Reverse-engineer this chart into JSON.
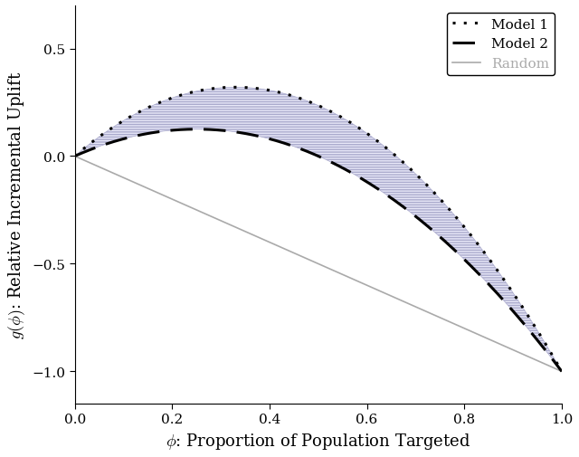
{
  "xlabel": "$\\phi$: Proportion of Population Targeted",
  "ylabel": "$g(\\phi)$: Relative Incremental Uplift",
  "xlim": [
    0,
    1
  ],
  "ylim": [
    -1.15,
    0.7
  ],
  "model1_label": "Model 1",
  "model2_label": "Model 2",
  "random_label": "Random",
  "model1_color": "#000000",
  "model2_color": "#000000",
  "random_color": "#aaaaaa",
  "hatch_linecolor": "#aaaacc",
  "hatch_facecolor": "#e8e8f8",
  "A1": 2.94,
  "A2": 2.0,
  "xticks": [
    0,
    0.2,
    0.4,
    0.6,
    0.8,
    1.0
  ],
  "yticks": [
    -1.0,
    -0.5,
    0.0,
    0.5
  ],
  "legend_loc": "upper right",
  "figsize": [
    6.4,
    5.06
  ],
  "dpi": 100
}
